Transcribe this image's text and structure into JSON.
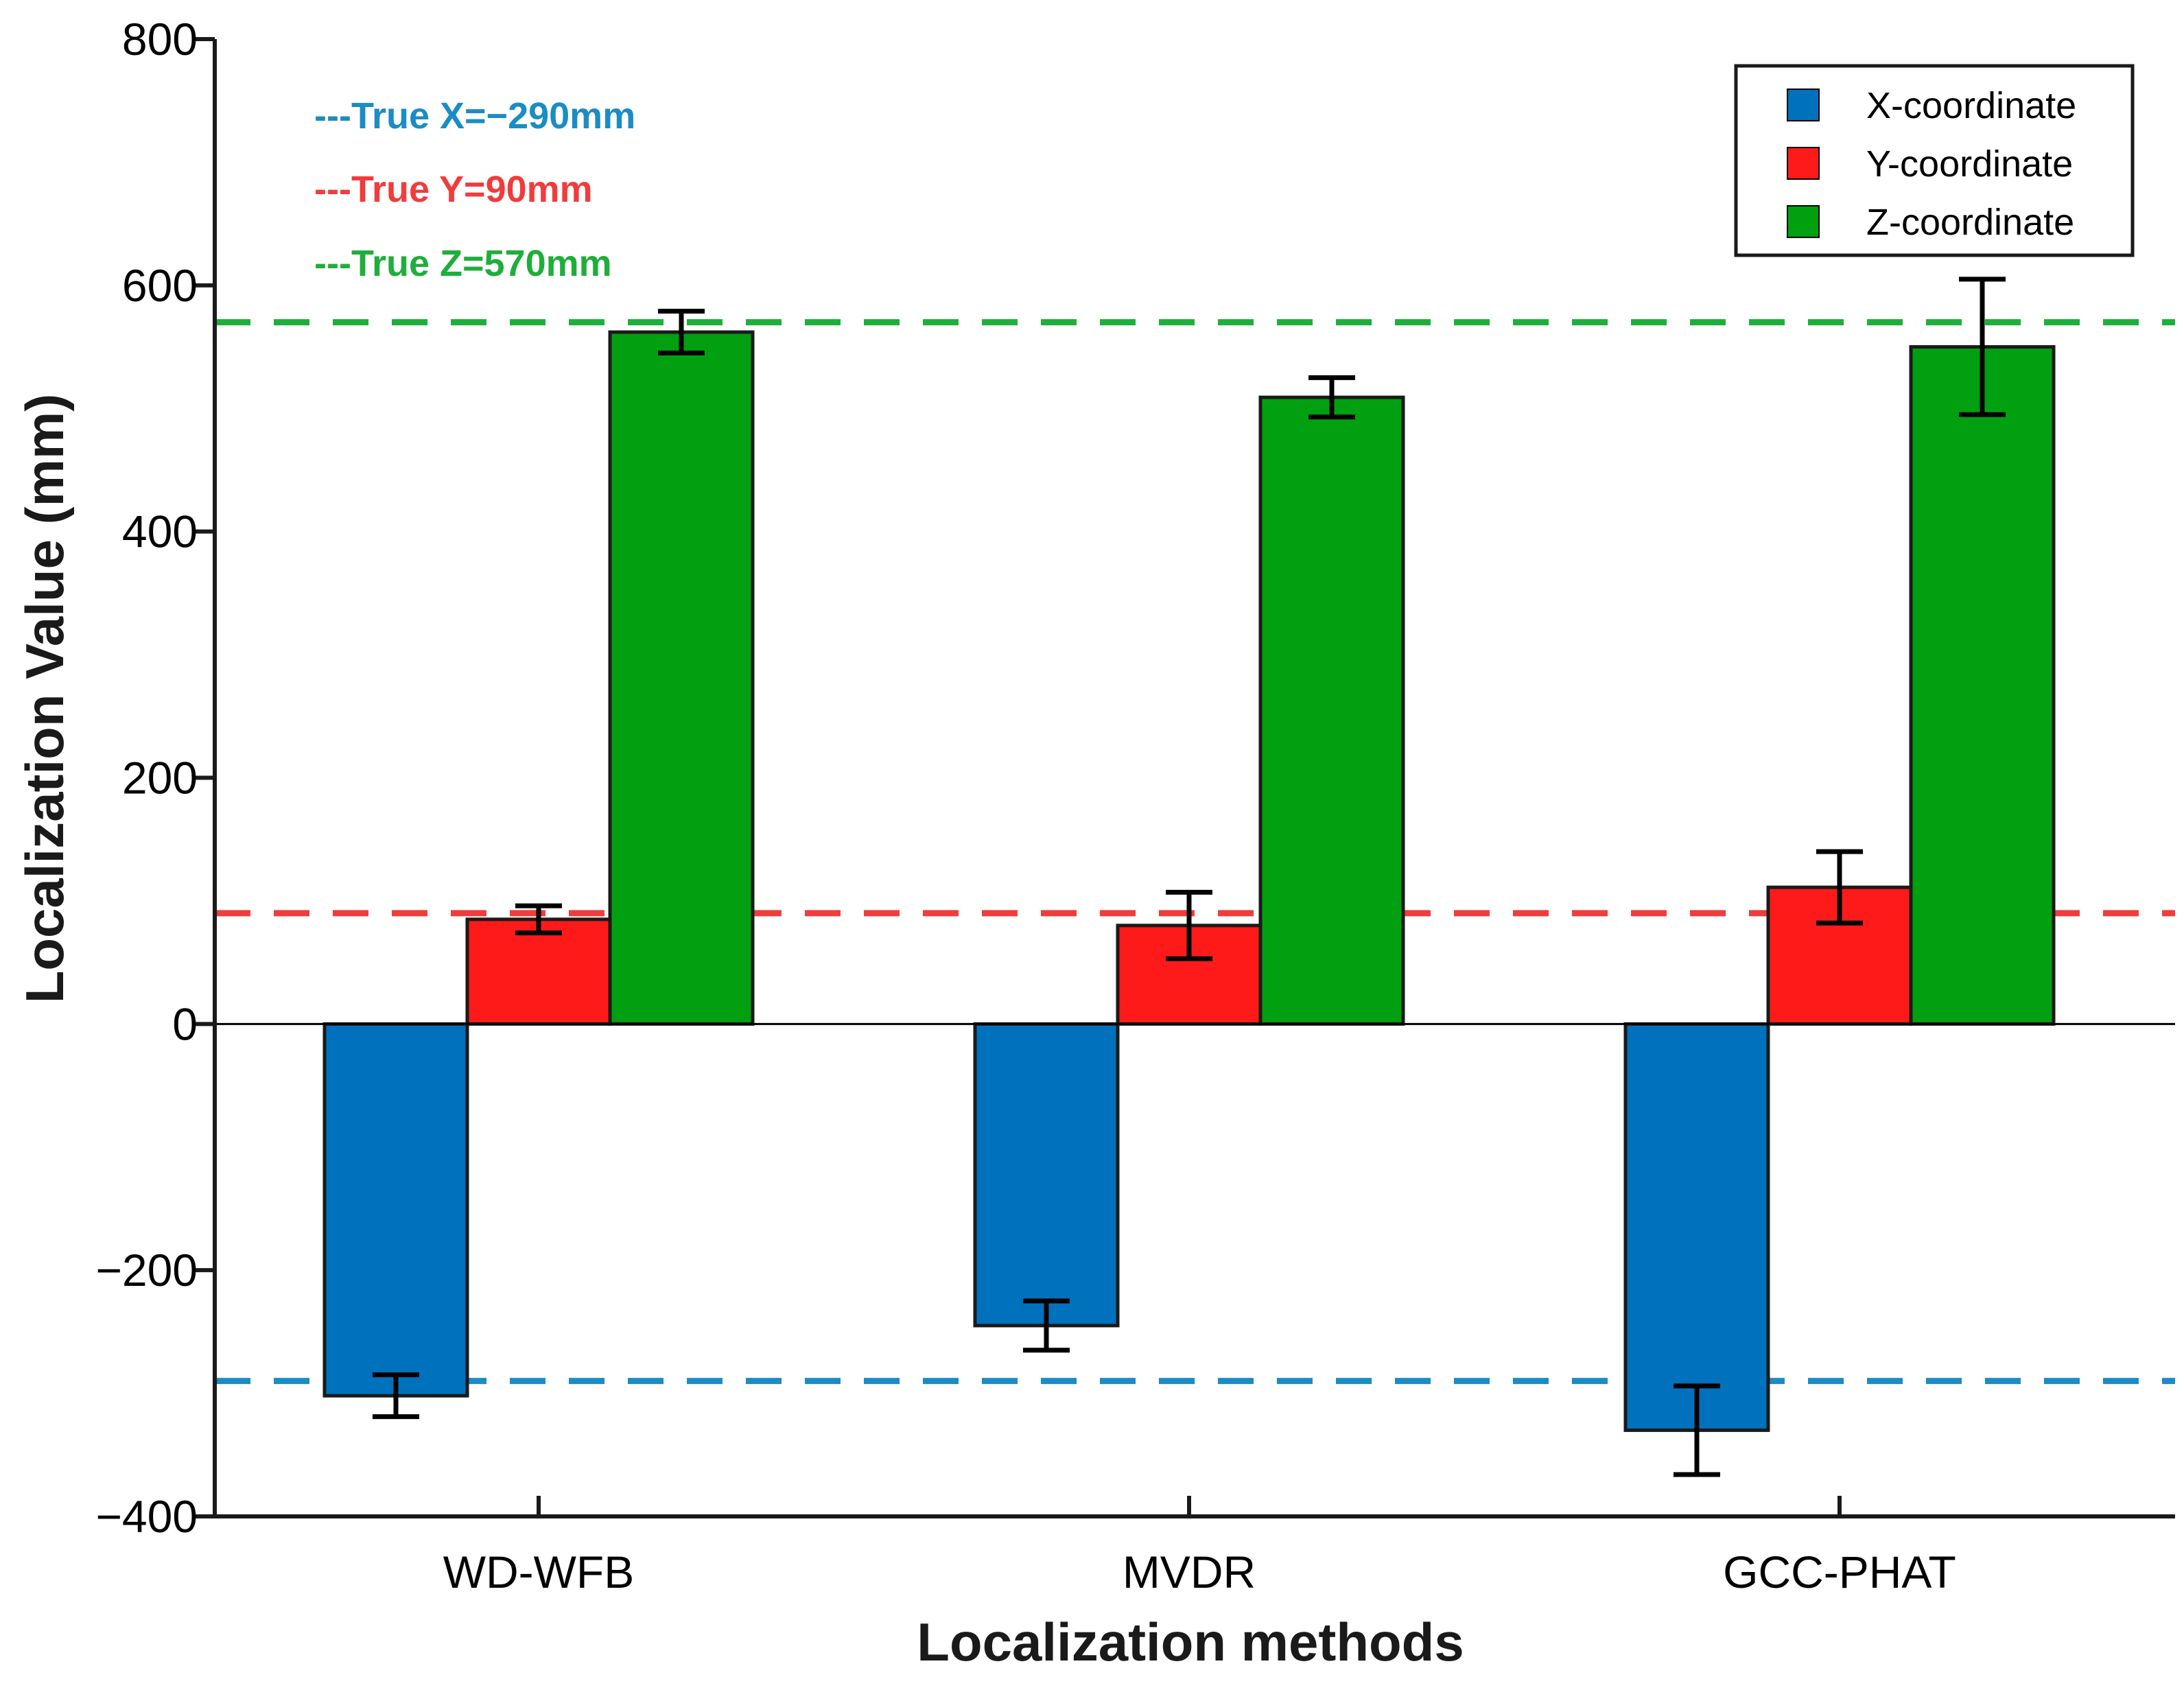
{
  "chart_data": {
    "type": "bar",
    "xlabel": "Localization methods",
    "ylabel": "Localization Value (mm)",
    "ylim": [
      -400,
      800
    ],
    "yticks": [
      -400,
      -200,
      0,
      200,
      400,
      600,
      800
    ],
    "ytick_labels": [
      "−400",
      "−200",
      "0",
      "200",
      "400",
      "600",
      "800"
    ],
    "categories": [
      "WD-WFB",
      "MVDR",
      "GCC-PHAT"
    ],
    "series": [
      {
        "name": "X-coordinate",
        "color": "#0072bd",
        "values": [
          -302,
          -245,
          -330
        ],
        "errors": [
          17,
          20,
          36
        ]
      },
      {
        "name": "Y-coordinate",
        "color": "#ff1a1a",
        "values": [
          85,
          80,
          111
        ],
        "errors": [
          11,
          27,
          29
        ]
      },
      {
        "name": "Z-coordinate",
        "color": "#00a010",
        "values": [
          562,
          509,
          550
        ],
        "errors": [
          17,
          16,
          55
        ]
      }
    ],
    "reference_lines": [
      {
        "label": "---True X=−290mm",
        "value": -290,
        "color": "#1b8cc4"
      },
      {
        "label": "---True Y=90mm",
        "value": 90,
        "color": "#f03c3c"
      },
      {
        "label": "---True Z=570mm",
        "value": 570,
        "color": "#1fae3c"
      }
    ],
    "legend_position": "top-right",
    "grid": false
  }
}
